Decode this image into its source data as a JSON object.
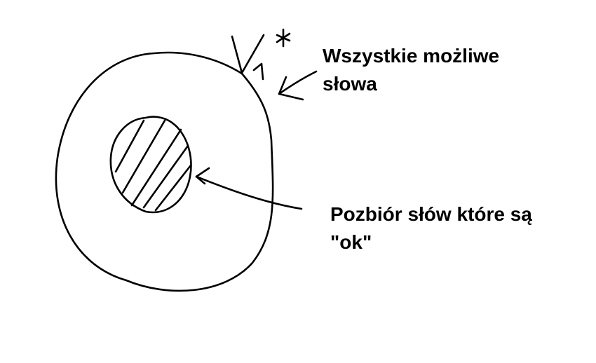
{
  "diagram": {
    "outer_set": {
      "label_lines": [
        "Wszystkie możliwe",
        "słowa"
      ],
      "symbol": {
        "base": "V",
        "subscript": "1",
        "superscript": "*"
      }
    },
    "inner_set": {
      "label_lines": [
        "Pozbiór słów które są",
        "\"ok\""
      ]
    },
    "colors": {
      "ink": "#000000",
      "background": "#ffffff"
    }
  }
}
